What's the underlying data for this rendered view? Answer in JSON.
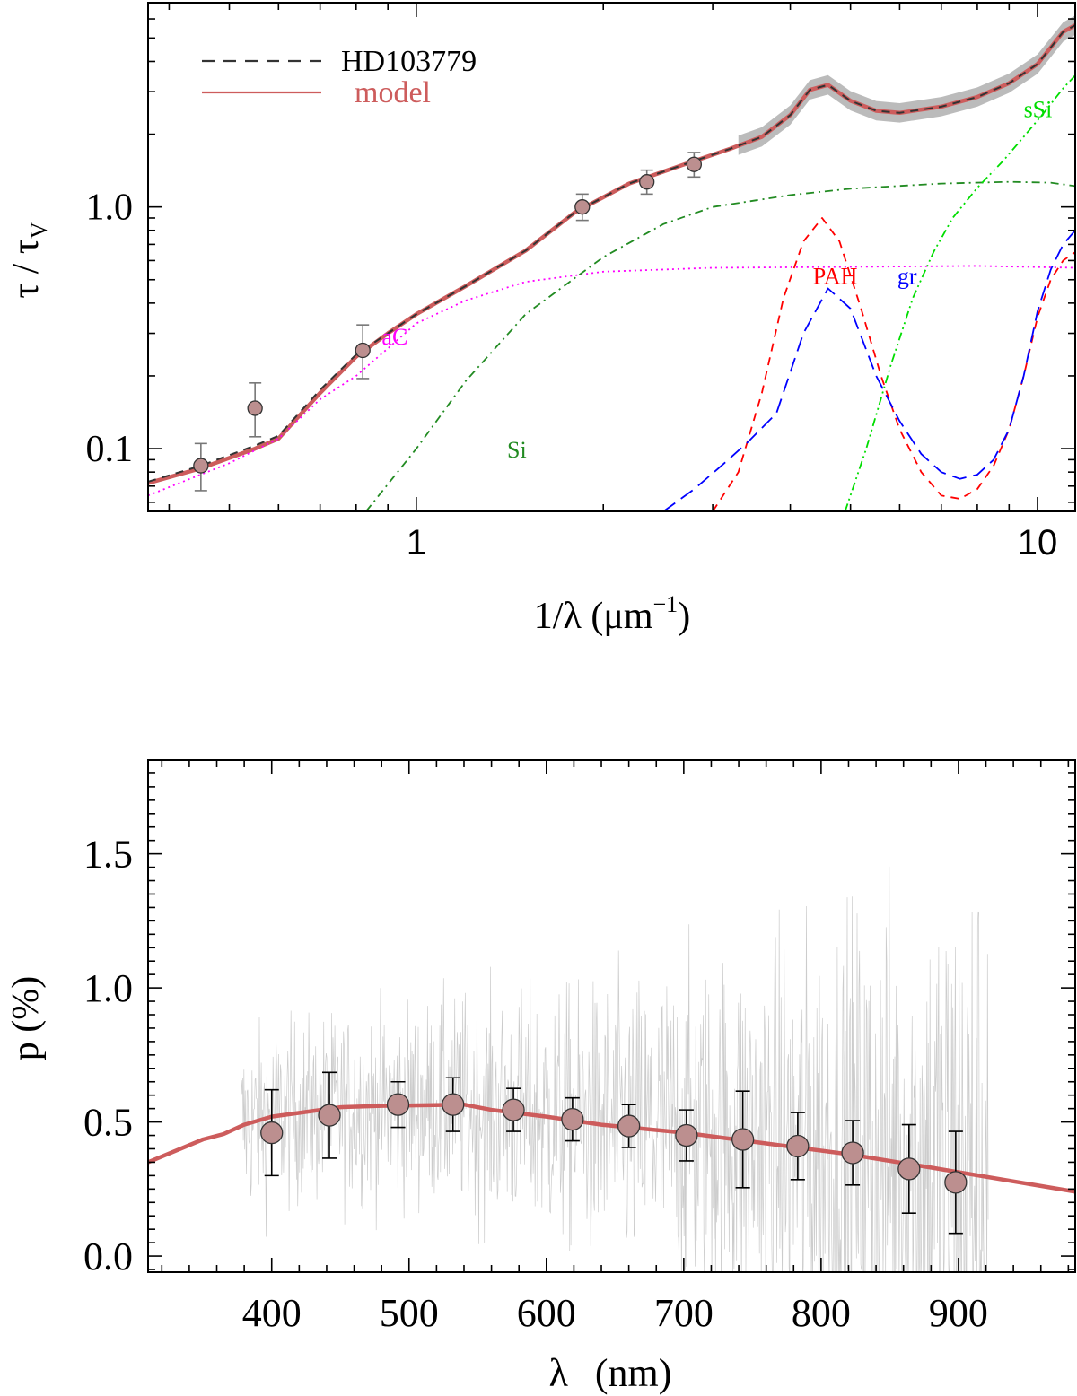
{
  "chart_data": [
    {
      "type": "line",
      "title": "",
      "xlabel_main": "1/λ (μm",
      "xlabel_exp": "−1",
      "xlabel_close": ")",
      "ylabel_main": "τ / τ",
      "ylabel_sub": "V",
      "xscale": "log",
      "yscale": "log",
      "xlim": [
        0.37,
        11.5
      ],
      "ylim": [
        0.055,
        7.0
      ],
      "x_ticks": [
        {
          "value": 1,
          "label": "1"
        },
        {
          "value": 10,
          "label": "10"
        }
      ],
      "y_ticks": [
        {
          "value": 0.1,
          "label": "0.1"
        },
        {
          "value": 1.0,
          "label": "1.0"
        }
      ],
      "legend": {
        "position": "top-left",
        "entries": [
          {
            "label": "HD103779",
            "style": "dashed",
            "color": "#333333"
          },
          {
            "label": "model",
            "style": "solid",
            "color": "#cd5c5c"
          }
        ]
      },
      "component_labels": [
        {
          "text": "aC",
          "x": 0.88,
          "y": 0.27,
          "color": "#ff00ff"
        },
        {
          "text": "Si",
          "x": 1.4,
          "y": 0.092,
          "color": "#228b22"
        },
        {
          "text": "PAH",
          "x": 4.35,
          "y": 0.48,
          "color": "#ff0000"
        },
        {
          "text": "gr",
          "x": 5.95,
          "y": 0.48,
          "color": "#0000ff"
        },
        {
          "text": "sSi",
          "x": 9.5,
          "y": 2.35,
          "color": "#00dd00"
        }
      ],
      "series": [
        {
          "name": "HD103779",
          "style": "dashed",
          "color": "#333333",
          "x": [
            0.37,
            0.45,
            0.55,
            0.6,
            0.7,
            0.8,
            0.9,
            1.0,
            1.2,
            1.5,
            1.8,
            2.2,
            2.7,
            3.2,
            3.6,
            4.0,
            4.3,
            4.6,
            5.0,
            5.5,
            6.0,
            7.0,
            8.0,
            9.0,
            10.0,
            11.0,
            11.5
          ],
          "y": [
            0.073,
            0.085,
            0.103,
            0.113,
            0.175,
            0.245,
            0.3,
            0.36,
            0.47,
            0.66,
            0.95,
            1.25,
            1.5,
            1.74,
            1.95,
            2.4,
            3.05,
            3.2,
            2.75,
            2.5,
            2.45,
            2.6,
            2.85,
            3.25,
            3.9,
            5.3,
            5.65
          ]
        },
        {
          "name": "model",
          "style": "solid",
          "color": "#cd5c5c",
          "x": [
            0.37,
            0.45,
            0.55,
            0.6,
            0.7,
            0.8,
            0.9,
            1.0,
            1.2,
            1.5,
            1.8,
            2.2,
            2.7,
            3.2,
            3.6,
            4.0,
            4.3,
            4.6,
            5.0,
            5.5,
            6.0,
            7.0,
            8.0,
            9.0,
            10.0,
            11.0,
            11.5
          ],
          "y": [
            0.072,
            0.083,
            0.1,
            0.11,
            0.17,
            0.24,
            0.3,
            0.36,
            0.47,
            0.66,
            0.95,
            1.25,
            1.5,
            1.74,
            1.95,
            2.4,
            3.05,
            3.2,
            2.75,
            2.5,
            2.45,
            2.6,
            2.85,
            3.25,
            3.9,
            5.3,
            5.65
          ]
        },
        {
          "name": "uncertainty band",
          "style": "band",
          "color": "#bbbbbb",
          "x": [
            3.3,
            3.6,
            4.0,
            4.3,
            4.6,
            5.0,
            5.5,
            6.0,
            7.0,
            8.0,
            9.0,
            10.0,
            11.0,
            11.5
          ],
          "y": [
            1.8,
            1.95,
            2.4,
            3.05,
            3.2,
            2.75,
            2.5,
            2.45,
            2.6,
            2.85,
            3.25,
            3.9,
            5.3,
            5.65
          ],
          "half_width_dex": 0.04
        },
        {
          "name": "aC",
          "style": "dotted",
          "color": "#ff00ff",
          "x": [
            0.37,
            0.5,
            0.6,
            0.7,
            0.8,
            0.9,
            1.0,
            1.2,
            1.5,
            2.0,
            3.0,
            5.0,
            8.0,
            11.5
          ],
          "y": [
            0.064,
            0.087,
            0.11,
            0.16,
            0.2,
            0.26,
            0.33,
            0.41,
            0.49,
            0.54,
            0.56,
            0.565,
            0.57,
            0.56
          ]
        },
        {
          "name": "Si",
          "style": "dashdot",
          "color": "#228b22",
          "x": [
            0.83,
            1.0,
            1.2,
            1.5,
            2.0,
            2.5,
            3.0,
            4.0,
            5.0,
            7.0,
            9.0,
            10.5,
            11.5
          ],
          "y": [
            0.055,
            0.1,
            0.19,
            0.36,
            0.62,
            0.85,
            1.0,
            1.12,
            1.19,
            1.25,
            1.27,
            1.26,
            1.22
          ]
        },
        {
          "name": "PAH",
          "style": "dashed",
          "color": "#ff0000",
          "x": [
            3.0,
            3.3,
            3.6,
            3.9,
            4.2,
            4.5,
            4.8,
            5.2,
            5.6,
            6.0,
            6.5,
            7.0,
            7.5,
            8.0,
            8.5,
            9.0,
            9.5,
            10.0,
            10.5,
            11.0,
            11.5
          ],
          "y": [
            0.055,
            0.08,
            0.17,
            0.42,
            0.72,
            0.9,
            0.72,
            0.38,
            0.2,
            0.12,
            0.08,
            0.064,
            0.062,
            0.068,
            0.085,
            0.12,
            0.2,
            0.35,
            0.5,
            0.6,
            0.65
          ]
        },
        {
          "name": "gr",
          "style": "longdash",
          "color": "#0000ff",
          "x": [
            2.5,
            2.8,
            3.1,
            3.4,
            3.8,
            4.2,
            4.6,
            5.0,
            5.5,
            6.0,
            6.5,
            7.0,
            7.5,
            8.0,
            8.5,
            9.0,
            9.5,
            10.0,
            10.5,
            11.0,
            11.5
          ],
          "y": [
            0.055,
            0.068,
            0.085,
            0.105,
            0.14,
            0.3,
            0.46,
            0.38,
            0.2,
            0.13,
            0.095,
            0.08,
            0.075,
            0.078,
            0.09,
            0.12,
            0.2,
            0.37,
            0.55,
            0.7,
            0.8
          ]
        },
        {
          "name": "sSi",
          "style": "dashdotdot",
          "color": "#00dd00",
          "x": [
            4.9,
            5.3,
            5.8,
            6.3,
            6.8,
            7.3,
            8.0,
            8.8,
            9.5,
            10.3,
            11.0,
            11.5
          ],
          "y": [
            0.055,
            0.1,
            0.22,
            0.42,
            0.65,
            0.9,
            1.2,
            1.55,
            1.95,
            2.5,
            3.1,
            3.5
          ]
        }
      ],
      "points": {
        "name": "HD103779 photometry",
        "marker_color": "#bc8f8f",
        "x": [
          0.45,
          0.55,
          0.82,
          1.85,
          2.35,
          2.8
        ],
        "y": [
          0.085,
          0.147,
          0.255,
          1.0,
          1.27,
          1.5
        ],
        "yerr_low": [
          0.018,
          0.035,
          0.06,
          0.12,
          0.14,
          0.17
        ],
        "yerr_high": [
          0.02,
          0.04,
          0.07,
          0.13,
          0.15,
          0.18
        ]
      }
    },
    {
      "type": "line",
      "title": "",
      "xlabel_main": "λ",
      "xlabel_unit": "(nm)",
      "ylabel": "p (%)",
      "xlim": [
        310,
        985
      ],
      "ylim": [
        -0.06,
        1.85
      ],
      "x_ticks": [
        400,
        500,
        600,
        700,
        800,
        900
      ],
      "x_tick_labels": [
        "400",
        "500",
        "600",
        "700",
        "800",
        "900"
      ],
      "y_ticks": [
        0.0,
        0.5,
        1.0,
        1.5
      ],
      "y_tick_labels": [
        "0.0",
        "0.5",
        "1.0",
        "1.5"
      ],
      "spectrum_range": [
        378,
        922
      ],
      "spectrum_color": "#cccccc",
      "series": [
        {
          "name": "model",
          "style": "solid",
          "color": "#cd5c5c",
          "x": [
            310,
            350,
            365,
            380,
            400,
            450,
            480,
            540,
            560,
            600,
            640,
            700,
            760,
            820,
            880,
            985
          ],
          "y": [
            0.35,
            0.435,
            0.455,
            0.49,
            0.52,
            0.555,
            0.56,
            0.565,
            0.545,
            0.52,
            0.49,
            0.46,
            0.42,
            0.38,
            0.33,
            0.24
          ]
        }
      ],
      "points": {
        "name": "binned polarization",
        "marker_color": "#bc8f8f",
        "x": [
          400,
          442,
          492,
          532,
          576,
          619,
          660,
          702,
          743,
          783,
          823,
          864,
          898
        ],
        "y": [
          0.46,
          0.525,
          0.565,
          0.565,
          0.545,
          0.51,
          0.485,
          0.45,
          0.435,
          0.41,
          0.385,
          0.325,
          0.275
        ],
        "yerr": [
          0.16,
          0.16,
          0.085,
          0.1,
          0.08,
          0.08,
          0.08,
          0.095,
          0.18,
          0.125,
          0.12,
          0.165,
          0.19
        ]
      }
    }
  ]
}
